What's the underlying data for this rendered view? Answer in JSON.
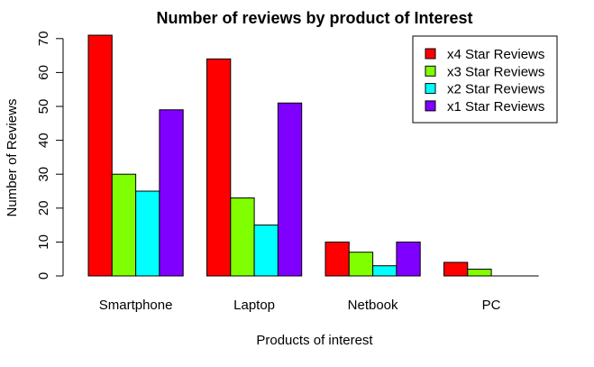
{
  "chart_data": {
    "type": "bar",
    "title": "Number of reviews by product of Interest",
    "xlabel": "Products of interest",
    "ylabel": "Number of Reviews",
    "categories": [
      "Smartphone",
      "Laptop",
      "Netbook",
      "PC"
    ],
    "series": [
      {
        "name": "x4 Star Reviews",
        "color": "#ff0000",
        "values": [
          71,
          64,
          10,
          4
        ]
      },
      {
        "name": "x3 Star Reviews",
        "color": "#80ff00",
        "values": [
          30,
          23,
          7,
          2
        ]
      },
      {
        "name": "x2 Star Reviews",
        "color": "#00ffff",
        "values": [
          25,
          15,
          3,
          0
        ]
      },
      {
        "name": "x1 Star Reviews",
        "color": "#8000ff",
        "values": [
          49,
          51,
          10,
          0
        ]
      }
    ],
    "ylim": [
      0,
      71
    ],
    "yticks": [
      0,
      10,
      20,
      30,
      40,
      50,
      60,
      70
    ],
    "legend": "top-right",
    "grid": false
  }
}
